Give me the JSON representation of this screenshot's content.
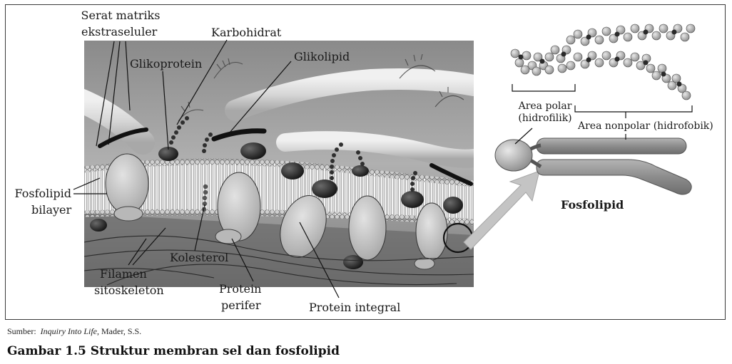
{
  "labels": {
    "serat_matriks": "Serat matriks\nekstraseluler",
    "karbohidrat": "Karbohidrat",
    "glikoprotein": "Glikoprotein",
    "glikolipid": "Glikolipid",
    "fosfolipid_bilayer": "Fosfolipid\nbilayer",
    "kolesterol": "Kolesterol",
    "filamen_sitoskeleton": "Filamen\nsitoskeleton",
    "protein_perifer": "Protein\nperifer",
    "protein_integral": "Protein integral",
    "area_polar": "Area polar\n(hidrofilik)",
    "area_nonpolar": "Area nonpolar (hidrofobik)",
    "fosfolipid": "Fosfolipid"
  },
  "source": {
    "prefix": "Sumber:",
    "title": "Inquiry Into Life",
    "suffix": ", Mader, S.S."
  },
  "caption": "Gambar 1.5  Struktur membran sel dan fosfolipid",
  "colors": {
    "membrane_bg": "#9a9a9a",
    "protein": "#c8c8c8",
    "phospholipid_head": "#b5b5b5",
    "arrow": "#c4c4c4"
  }
}
